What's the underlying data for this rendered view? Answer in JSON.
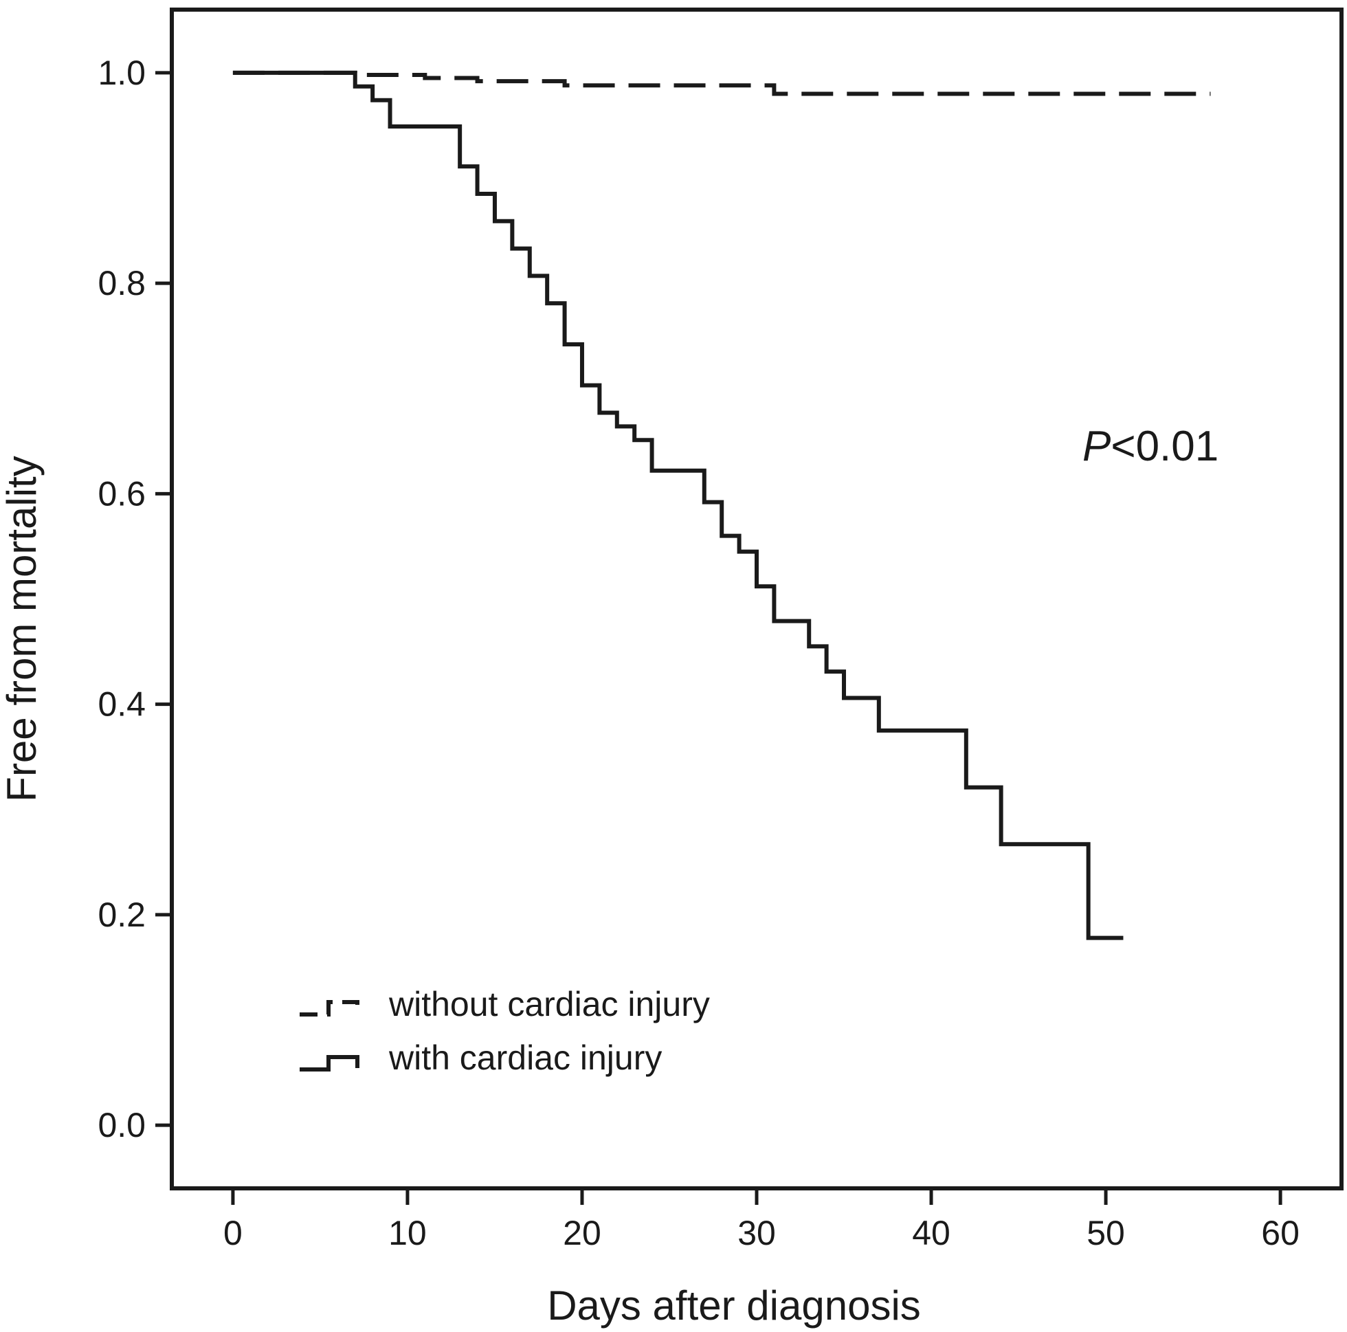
{
  "chart_data": {
    "type": "line",
    "title": "",
    "xlabel": "Days after diagnosis",
    "ylabel": "Free from mortality",
    "xlim": [
      -3.5,
      63.5
    ],
    "ylim": [
      -0.06,
      1.06
    ],
    "xticks": [
      0,
      10,
      20,
      30,
      40,
      50,
      60
    ],
    "yticks": [
      0.0,
      0.2,
      0.4,
      0.6,
      0.8,
      1.0
    ],
    "xtick_labels": [
      "0",
      "10",
      "20",
      "30",
      "40",
      "50",
      "60"
    ],
    "ytick_labels": [
      "0.0",
      "0.2",
      "0.4",
      "0.6",
      "0.8",
      "1.0"
    ],
    "grid": false,
    "legend_position": "bottom-left",
    "annotation": {
      "prefix": "P",
      "text": "<0.01"
    },
    "series": [
      {
        "name": "without cardiac injury",
        "style": "dashed",
        "color": "#1a1a1a",
        "x": [
          0,
          7,
          11,
          14,
          19,
          31,
          56
        ],
        "y": [
          1.0,
          0.998,
          0.995,
          0.992,
          0.988,
          0.98,
          0.98
        ]
      },
      {
        "name": "with cardiac injury",
        "style": "solid",
        "color": "#1a1a1a",
        "x": [
          0,
          7,
          8,
          9,
          13,
          14,
          15,
          16,
          17,
          18,
          19,
          20,
          21,
          22,
          23,
          24,
          27,
          28,
          29,
          30,
          31,
          33,
          34,
          35,
          37,
          42,
          44,
          49,
          51
        ],
        "y": [
          1.0,
          0.987,
          0.974,
          0.949,
          0.911,
          0.885,
          0.859,
          0.833,
          0.807,
          0.781,
          0.742,
          0.703,
          0.677,
          0.664,
          0.651,
          0.622,
          0.592,
          0.56,
          0.545,
          0.512,
          0.479,
          0.455,
          0.431,
          0.406,
          0.375,
          0.321,
          0.267,
          0.178,
          0.178
        ]
      }
    ]
  }
}
